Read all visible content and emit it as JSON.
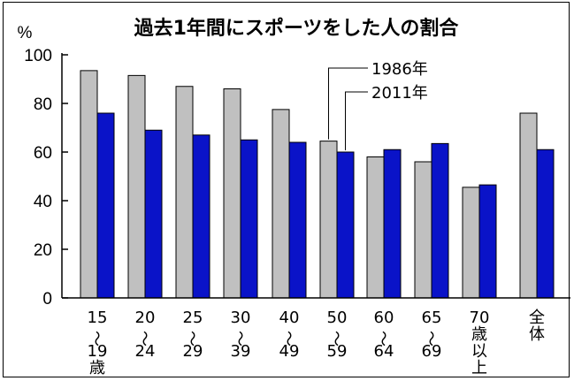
{
  "chart_data": {
    "type": "bar",
    "title": "過去1年間にスポーツをした人の割合",
    "ylabel": "%",
    "ylim": [
      0,
      100
    ],
    "yticks": [
      "0",
      "20",
      "40",
      "60",
      "80",
      "100"
    ],
    "grid": false,
    "legend_position": "top-right",
    "category_lines": [
      [
        "15",
        "〜",
        "19",
        "歳"
      ],
      [
        "20",
        "〜",
        "24"
      ],
      [
        "25",
        "〜",
        "29"
      ],
      [
        "30",
        "〜",
        "39"
      ],
      [
        "40",
        "〜",
        "49"
      ],
      [
        "50",
        "〜",
        "59"
      ],
      [
        "60",
        "〜",
        "64"
      ],
      [
        "65",
        "〜",
        "69"
      ],
      [
        "70",
        "歳",
        "以",
        "上"
      ],
      [
        "全",
        "体"
      ]
    ],
    "series": [
      {
        "name": "1986年",
        "color": "#c0c0c0",
        "values": [
          93.5,
          91.5,
          87,
          86,
          77.5,
          64.5,
          58,
          56,
          45.5,
          76
        ]
      },
      {
        "name": "2011年",
        "color": "#0a13c8",
        "values": [
          76,
          69,
          67,
          65,
          64,
          60,
          61,
          63.5,
          46.5,
          61
        ]
      }
    ]
  }
}
